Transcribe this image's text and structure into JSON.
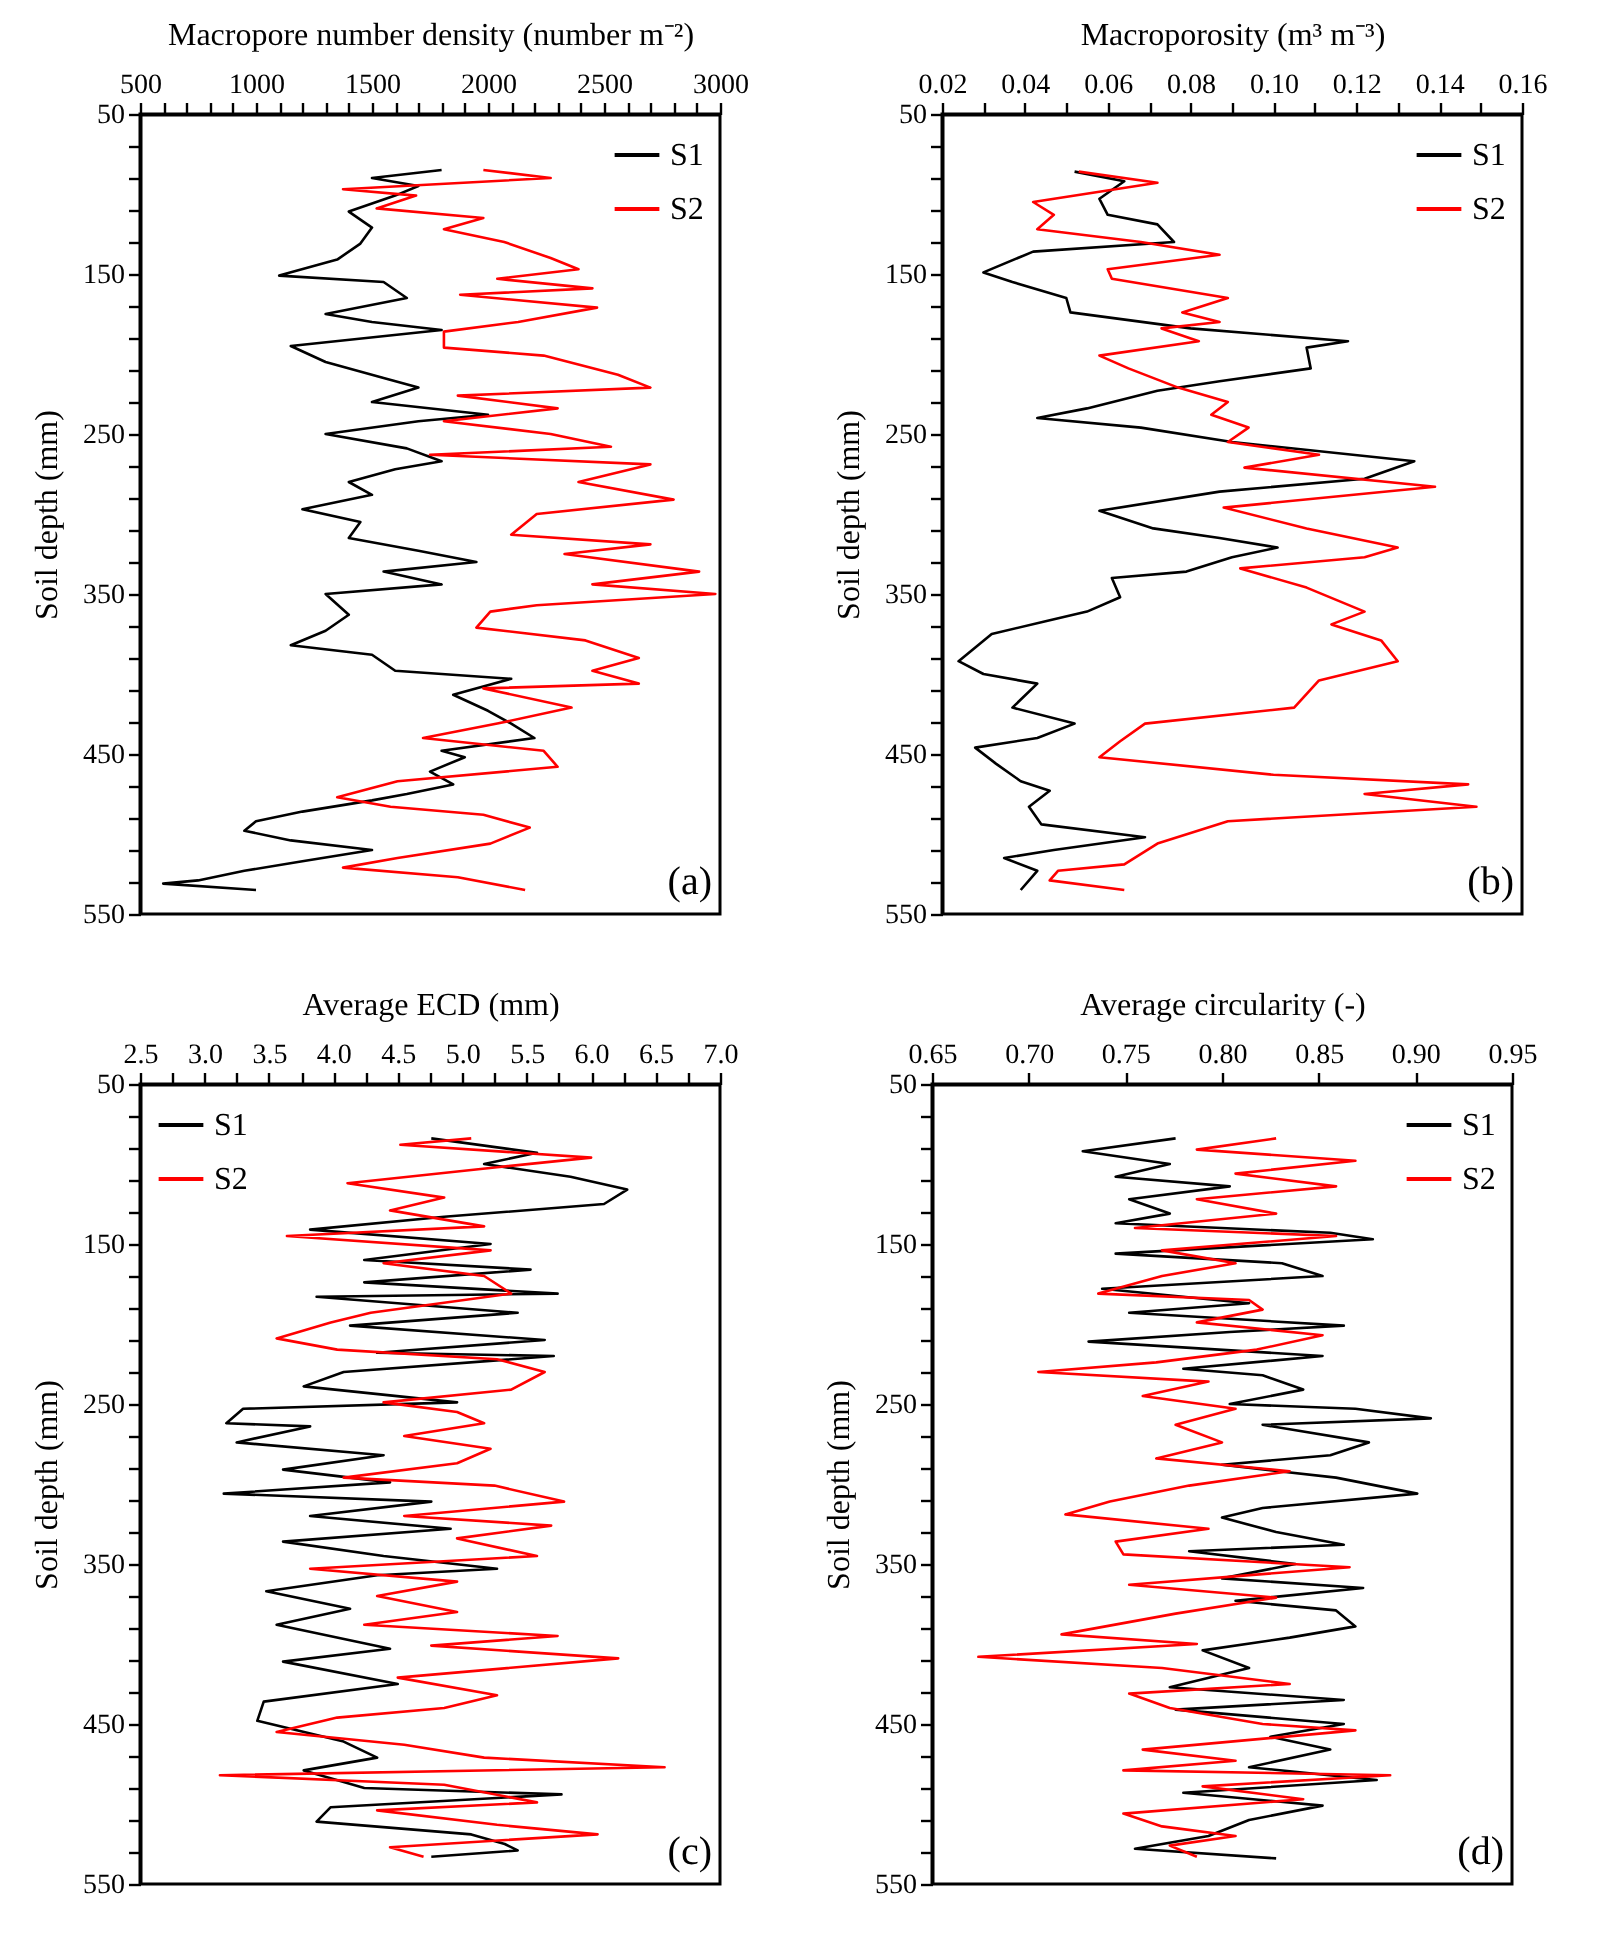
{
  "chart_data": [
    {
      "type": "line",
      "xlabel": "Macropore number density (number m⁻²)",
      "ylabel": "Soil depth (mm)",
      "annotations": [
        "(a)"
      ],
      "legend": "top right",
      "xlim": [
        500,
        3000
      ],
      "xticks": [
        500,
        {
          "value": 600,
          "label": null
        },
        {
          "value": 700,
          "label": null
        },
        {
          "value": 800,
          "label": null
        },
        {
          "value": 900,
          "label": null
        },
        1000,
        {
          "value": 1100,
          "label": null
        },
        {
          "value": 1200,
          "label": null
        },
        {
          "value": 1300,
          "label": null
        },
        {
          "value": 1400,
          "label": null
        },
        1500,
        {
          "value": 1600,
          "label": null
        },
        {
          "value": 1700,
          "label": null
        },
        {
          "value": 1800,
          "label": null
        },
        {
          "value": 1900,
          "label": null
        },
        2000,
        {
          "value": 2100,
          "label": null
        },
        {
          "value": 2200,
          "label": null
        },
        {
          "value": 2300,
          "label": null
        },
        {
          "value": 2400,
          "label": null
        },
        2500,
        {
          "value": 2600,
          "label": null
        },
        {
          "value": 2700,
          "label": null
        },
        {
          "value": 2800,
          "label": null
        },
        {
          "value": 2900,
          "label": null
        },
        3000
      ],
      "ylim": [
        550,
        50
      ],
      "yticks": [
        50,
        {
          "value": 70,
          "label": null
        },
        {
          "value": 90,
          "label": null
        },
        {
          "value": 110,
          "label": null
        },
        {
          "value": 130,
          "label": null
        },
        150,
        {
          "value": 170,
          "label": null
        },
        {
          "value": 190,
          "label": null
        },
        {
          "value": 210,
          "label": null
        },
        {
          "value": 230,
          "label": null
        },
        250,
        {
          "value": 270,
          "label": null
        },
        {
          "value": 290,
          "label": null
        },
        {
          "value": 310,
          "label": null
        },
        {
          "value": 330,
          "label": null
        },
        350,
        {
          "value": 370,
          "label": null
        },
        {
          "value": 390,
          "label": null
        },
        {
          "value": 410,
          "label": null
        },
        {
          "value": 430,
          "label": null
        },
        450,
        {
          "value": 470,
          "label": null
        },
        {
          "value": 490,
          "label": null
        },
        {
          "value": 510,
          "label": null
        },
        {
          "value": 530,
          "label": null
        },
        550
      ],
      "series": [
        {
          "name": "S1",
          "color": "#000000",
          "x": [
            1800,
            1500,
            1700,
            1600,
            1400,
            1500,
            1450,
            1350,
            1100,
            1550,
            1650,
            1300,
            1500,
            1800,
            1150,
            1300,
            1550,
            1700,
            1500,
            2000,
            1700,
            1300,
            1650,
            1800,
            1600,
            1400,
            1500,
            1200,
            1450,
            1400,
            1700,
            1950,
            1550,
            1800,
            1300,
            1400,
            1300,
            1150,
            1500,
            1600,
            2100,
            1850,
            2000,
            2100,
            2200,
            1800,
            1900,
            1750,
            1850,
            1650,
            1500,
            1200,
            1000,
            950,
            1150,
            1500,
            1200,
            950,
            750,
            600,
            1000
          ],
          "values": [
            85,
            90,
            95,
            101,
            111,
            121,
            131,
            141,
            151,
            155,
            165,
            175,
            180,
            185,
            195,
            205,
            215,
            221,
            230,
            238,
            242,
            250,
            259,
            267,
            272,
            280,
            288,
            297,
            305,
            315,
            323,
            330,
            336,
            344,
            350,
            363,
            373,
            382,
            388,
            398,
            403,
            413,
            423,
            431,
            440,
            448,
            452,
            461,
            469,
            475,
            479,
            486,
            492,
            498,
            504,
            510,
            517,
            523,
            529,
            531,
            535
          ]
        },
        {
          "name": "S2",
          "color": "#ff0000",
          "x": [
            1980,
            2270,
            1375,
            1690,
            1520,
            1980,
            1810,
            2070,
            2270,
            2390,
            2040,
            2450,
            1880,
            2470,
            2130,
            1810,
            1810,
            2240,
            2560,
            2700,
            1870,
            2300,
            1810,
            2270,
            2530,
            1750,
            2700,
            2390,
            2800,
            2210,
            2100,
            2700,
            2330,
            2910,
            2450,
            2980,
            2210,
            2010,
            1950,
            2420,
            2650,
            2450,
            2650,
            1980,
            2360,
            2040,
            1720,
            2240,
            2300,
            1610,
            1350,
            1580,
            1980,
            2180,
            2010,
            1610,
            1375,
            1870,
            2160
          ],
          "values": [
            85,
            90,
            97,
            101,
            109,
            115,
            122,
            130,
            140,
            147,
            153,
            159,
            163,
            171,
            180,
            186,
            196,
            201,
            213,
            221,
            226,
            234,
            242,
            250,
            258,
            263,
            269,
            280,
            291,
            300,
            313,
            319,
            325,
            336,
            344,
            350,
            357,
            361,
            371,
            379,
            390,
            398,
            406,
            409,
            421,
            431,
            440,
            448,
            458,
            467,
            477,
            483,
            488,
            496,
            506,
            515,
            521,
            527,
            535
          ]
        }
      ]
    },
    {
      "type": "line",
      "xlabel": "Macroporosity (m³ m⁻³)",
      "ylabel": "Soil depth (mm)",
      "annotations": [
        "(b)"
      ],
      "legend": "top right",
      "xlim": [
        0.02,
        0.16
      ],
      "xticks": [
        0.02,
        {
          "value": 0.03,
          "label": null
        },
        0.04,
        {
          "value": 0.05,
          "label": null
        },
        0.06,
        {
          "value": 0.07,
          "label": null
        },
        0.08,
        {
          "value": 0.09,
          "label": null
        },
        {
          "value": 0.1,
          "label": "0.10"
        },
        {
          "value": 0.11,
          "label": null
        },
        0.12,
        {
          "value": 0.13,
          "label": null
        },
        0.14,
        {
          "value": 0.15,
          "label": null
        },
        0.16
      ],
      "ylim": [
        550,
        50
      ],
      "yticks": [
        50,
        {
          "value": 70,
          "label": null
        },
        {
          "value": 90,
          "label": null
        },
        {
          "value": 110,
          "label": null
        },
        {
          "value": 130,
          "label": null
        },
        150,
        {
          "value": 170,
          "label": null
        },
        {
          "value": 190,
          "label": null
        },
        {
          "value": 210,
          "label": null
        },
        {
          "value": 230,
          "label": null
        },
        250,
        {
          "value": 270,
          "label": null
        },
        {
          "value": 290,
          "label": null
        },
        {
          "value": 310,
          "label": null
        },
        {
          "value": 330,
          "label": null
        },
        350,
        {
          "value": 370,
          "label": null
        },
        {
          "value": 390,
          "label": null
        },
        {
          "value": 410,
          "label": null
        },
        {
          "value": 430,
          "label": null
        },
        450,
        {
          "value": 470,
          "label": null
        },
        {
          "value": 490,
          "label": null
        },
        {
          "value": 510,
          "label": null
        },
        {
          "value": 530,
          "label": null
        },
        550
      ],
      "series": [
        {
          "name": "S1",
          "color": "#000000",
          "x": [
            0.052,
            0.064,
            0.058,
            0.06,
            0.072,
            0.076,
            0.042,
            0.03,
            0.037,
            0.05,
            0.051,
            0.08,
            0.118,
            0.108,
            0.109,
            0.087,
            0.072,
            0.055,
            0.043,
            0.068,
            0.09,
            0.134,
            0.122,
            0.087,
            0.058,
            0.071,
            0.087,
            0.101,
            0.09,
            0.079,
            0.061,
            0.063,
            0.055,
            0.045,
            0.032,
            0.024,
            0.03,
            0.043,
            0.037,
            0.052,
            0.043,
            0.028,
            0.033,
            0.039,
            0.046,
            0.041,
            0.044,
            0.069,
            0.047,
            0.035,
            0.043,
            0.039
          ],
          "values": [
            86,
            92,
            103,
            113,
            119,
            130,
            136,
            149,
            155,
            165,
            174,
            184,
            192,
            196,
            209,
            217,
            223,
            234,
            240,
            246,
            255,
            267,
            278,
            286,
            298,
            309,
            315,
            321,
            327,
            336,
            340,
            352,
            361,
            367,
            375,
            392,
            400,
            406,
            421,
            431,
            440,
            446,
            456,
            467,
            473,
            483,
            494,
            502,
            510,
            515,
            523,
            535
          ]
        },
        {
          "name": "S2",
          "color": "#ff0000",
          "x": [
            0.053,
            0.072,
            0.042,
            0.047,
            0.043,
            0.068,
            0.087,
            0.06,
            0.061,
            0.089,
            0.078,
            0.087,
            0.073,
            0.082,
            0.058,
            0.065,
            0.077,
            0.089,
            0.085,
            0.094,
            0.089,
            0.111,
            0.093,
            0.139,
            0.088,
            0.108,
            0.13,
            0.122,
            0.092,
            0.108,
            0.122,
            0.114,
            0.126,
            0.13,
            0.111,
            0.105,
            0.069,
            0.063,
            0.058,
            0.1,
            0.147,
            0.122,
            0.149,
            0.089,
            0.072,
            0.064,
            0.048,
            0.046,
            0.064
          ],
          "values": [
            86,
            93,
            105,
            113,
            122,
            130,
            138,
            147,
            153,
            165,
            174,
            180,
            184,
            192,
            201,
            209,
            221,
            230,
            238,
            246,
            255,
            263,
            271,
            283,
            296,
            309,
            321,
            327,
            334,
            346,
            361,
            369,
            379,
            392,
            404,
            421,
            431,
            442,
            452,
            463,
            469,
            475,
            483,
            492,
            506,
            519,
            523,
            529,
            535
          ]
        }
      ]
    },
    {
      "type": "line",
      "xlabel": "Average ECD (mm)",
      "ylabel": "Soil depth (mm)",
      "annotations": [
        "(c)"
      ],
      "legend": "top left",
      "xlim": [
        2.5,
        7.0
      ],
      "xticks": [
        2.5,
        {
          "value": 2.75,
          "label": null
        },
        {
          "value": 3,
          "label": "3.0"
        },
        {
          "value": 3.25,
          "label": null
        },
        3.5,
        {
          "value": 3.75,
          "label": null
        },
        {
          "value": 4,
          "label": "4.0"
        },
        {
          "value": 4.25,
          "label": null
        },
        4.5,
        {
          "value": 4.75,
          "label": null
        },
        {
          "value": 5,
          "label": "5.0"
        },
        {
          "value": 5.25,
          "label": null
        },
        5.5,
        {
          "value": 5.75,
          "label": null
        },
        {
          "value": 6,
          "label": "6.0"
        },
        {
          "value": 6.25,
          "label": null
        },
        6.5,
        {
          "value": 6.75,
          "label": null
        },
        {
          "value": 7,
          "label": "7.0"
        }
      ],
      "ylim": [
        550,
        50
      ],
      "yticks": [
        50,
        {
          "value": 70,
          "label": null
        },
        {
          "value": 90,
          "label": null
        },
        {
          "value": 110,
          "label": null
        },
        {
          "value": 130,
          "label": null
        },
        150,
        {
          "value": 170,
          "label": null
        },
        {
          "value": 190,
          "label": null
        },
        {
          "value": 210,
          "label": null
        },
        {
          "value": 230,
          "label": null
        },
        250,
        {
          "value": 270,
          "label": null
        },
        {
          "value": 290,
          "label": null
        },
        {
          "value": 310,
          "label": null
        },
        {
          "value": 330,
          "label": null
        },
        350,
        {
          "value": 370,
          "label": null
        },
        {
          "value": 390,
          "label": null
        },
        {
          "value": 410,
          "label": null
        },
        {
          "value": 430,
          "label": null
        },
        450,
        {
          "value": 470,
          "label": null
        },
        {
          "value": 490,
          "label": null
        },
        {
          "value": 510,
          "label": null
        },
        {
          "value": 530,
          "label": null
        },
        550
      ],
      "series": [
        {
          "name": "S1",
          "color": "#000000",
          "x": [
            4.76,
            5.58,
            5.17,
            5.84,
            6.28,
            6.1,
            4.86,
            3.82,
            5.22,
            4.24,
            5.53,
            4.24,
            5.74,
            3.87,
            5.43,
            4.13,
            5.64,
            4.34,
            5.71,
            4.08,
            3.77,
            4.96,
            3.3,
            3.17,
            3.82,
            3.25,
            4.39,
            3.61,
            4.44,
            3.15,
            4.76,
            3.82,
            4.91,
            3.61,
            4.39,
            5.27,
            4.34,
            3.48,
            4.13,
            3.56,
            4.44,
            3.61,
            4.5,
            3.46,
            3.41,
            4.08,
            4.34,
            3.77,
            4.24,
            5.77,
            3.98,
            3.87,
            5.07,
            5.33,
            5.43,
            4.76
          ],
          "values": [
            84,
            93,
            100,
            108,
            116,
            125,
            133,
            141,
            150,
            160,
            166,
            174,
            181,
            183,
            193,
            201,
            210,
            218,
            220,
            230,
            239,
            249,
            253,
            262,
            264,
            274,
            282,
            291,
            299,
            306,
            311,
            320,
            328,
            336,
            345,
            353,
            357,
            367,
            378,
            388,
            403,
            411,
            425,
            436,
            448,
            461,
            471,
            479,
            490,
            494,
            502,
            511,
            519,
            525,
            529,
            533
          ]
        },
        {
          "name": "S2",
          "color": "#ff0000",
          "x": [
            5.07,
            4.52,
            6.0,
            5.27,
            4.11,
            4.86,
            4.44,
            5.17,
            3.64,
            5.22,
            4.39,
            5.17,
            5.38,
            4.29,
            3.98,
            3.56,
            4.03,
            5.27,
            5.64,
            5.38,
            4.39,
            4.96,
            5.17,
            4.55,
            5.22,
            4.96,
            4.08,
            5.25,
            5.79,
            4.55,
            5.69,
            4.96,
            5.58,
            3.82,
            4.96,
            4.34,
            4.96,
            4.24,
            5.74,
            4.76,
            6.21,
            4.5,
            5.27,
            4.86,
            4.03,
            3.56,
            4.55,
            5.17,
            6.57,
            3.12,
            4.86,
            5.58,
            4.34,
            5.27,
            6.05,
            4.44,
            4.7
          ],
          "values": [
            84,
            88,
            96,
            102,
            112,
            121,
            129,
            139,
            145,
            154,
            162,
            170,
            181,
            193,
            199,
            209,
            216,
            222,
            230,
            241,
            249,
            255,
            262,
            270,
            278,
            287,
            296,
            301,
            311,
            320,
            326,
            334,
            345,
            353,
            361,
            370,
            380,
            388,
            395,
            401,
            409,
            421,
            432,
            440,
            446,
            455,
            463,
            471,
            477,
            482,
            488,
            499,
            504,
            513,
            519,
            527,
            533
          ]
        }
      ]
    },
    {
      "type": "line",
      "xlabel": "Average circularity (-)",
      "ylabel": "Soil depth (mm)",
      "annotations": [
        "(d)"
      ],
      "legend": "top right",
      "xlim": [
        0.65,
        0.95
      ],
      "xticks": [
        0.65,
        {
          "value": 0.7,
          "label": "0.70"
        },
        0.75,
        {
          "value": 0.8,
          "label": "0.80"
        },
        0.85,
        {
          "value": 0.9,
          "label": "0.90"
        },
        0.95
      ],
      "ylim": [
        550,
        50
      ],
      "yticks": [
        50,
        {
          "value": 70,
          "label": null
        },
        {
          "value": 90,
          "label": null
        },
        {
          "value": 110,
          "label": null
        },
        {
          "value": 130,
          "label": null
        },
        150,
        {
          "value": 170,
          "label": null
        },
        {
          "value": 190,
          "label": null
        },
        {
          "value": 210,
          "label": null
        },
        {
          "value": 230,
          "label": null
        },
        250,
        {
          "value": 270,
          "label": null
        },
        {
          "value": 290,
          "label": null
        },
        {
          "value": 310,
          "label": null
        },
        {
          "value": 330,
          "label": null
        },
        350,
        {
          "value": 370,
          "label": null
        },
        {
          "value": 390,
          "label": null
        },
        {
          "value": 410,
          "label": null
        },
        {
          "value": 430,
          "label": null
        },
        450,
        {
          "value": 470,
          "label": null
        },
        {
          "value": 490,
          "label": null
        },
        {
          "value": 510,
          "label": null
        },
        {
          "value": 530,
          "label": null
        },
        550
      ],
      "series": [
        {
          "name": "S1",
          "color": "#000000",
          "x": [
            0.776,
            0.728,
            0.773,
            0.745,
            0.804,
            0.752,
            0.773,
            0.745,
            0.856,
            0.878,
            0.745,
            0.831,
            0.852,
            0.738,
            0.814,
            0.752,
            0.863,
            0.804,
            0.731,
            0.852,
            0.78,
            0.821,
            0.842,
            0.804,
            0.869,
            0.908,
            0.821,
            0.876,
            0.856,
            0.8,
            0.859,
            0.901,
            0.821,
            0.8,
            0.828,
            0.863,
            0.783,
            0.838,
            0.8,
            0.873,
            0.807,
            0.859,
            0.869,
            0.835,
            0.79,
            0.814,
            0.773,
            0.863,
            0.776,
            0.863,
            0.825,
            0.856,
            0.814,
            0.88,
            0.78,
            0.852,
            0.814,
            0.793,
            0.755,
            0.828
          ],
          "values": [
            84,
            92,
            100,
            108,
            114,
            122,
            131,
            137,
            143,
            147,
            156,
            162,
            170,
            178,
            187,
            193,
            201,
            205,
            211,
            220,
            228,
            232,
            241,
            250,
            253,
            259,
            263,
            274,
            282,
            288,
            296,
            306,
            315,
            321,
            330,
            338,
            342,
            350,
            359,
            365,
            373,
            379,
            389,
            396,
            404,
            415,
            427,
            435,
            441,
            450,
            458,
            466,
            477,
            485,
            493,
            501,
            510,
            520,
            528,
            534
          ]
        },
        {
          "name": "S2",
          "color": "#ff0000",
          "x": [
            0.828,
            0.787,
            0.869,
            0.807,
            0.859,
            0.787,
            0.828,
            0.755,
            0.859,
            0.769,
            0.807,
            0.769,
            0.736,
            0.814,
            0.821,
            0.787,
            0.852,
            0.818,
            0.766,
            0.705,
            0.793,
            0.759,
            0.807,
            0.776,
            0.8,
            0.766,
            0.835,
            0.783,
            0.742,
            0.719,
            0.793,
            0.745,
            0.749,
            0.866,
            0.752,
            0.828,
            0.776,
            0.717,
            0.787,
            0.674,
            0.769,
            0.835,
            0.752,
            0.773,
            0.821,
            0.869,
            0.759,
            0.807,
            0.749,
            0.887,
            0.79,
            0.842,
            0.749,
            0.769,
            0.807,
            0.773,
            0.787
          ],
          "values": [
            84,
            91,
            98,
            106,
            114,
            122,
            131,
            140,
            145,
            154,
            162,
            170,
            181,
            185,
            191,
            199,
            207,
            216,
            224,
            230,
            236,
            245,
            253,
            263,
            274,
            284,
            292,
            301,
            311,
            319,
            328,
            336,
            344,
            352,
            363,
            371,
            381,
            394,
            400,
            408,
            415,
            425,
            431,
            440,
            450,
            454,
            466,
            473,
            479,
            482,
            489,
            497,
            506,
            514,
            520,
            526,
            533
          ]
        }
      ]
    }
  ]
}
